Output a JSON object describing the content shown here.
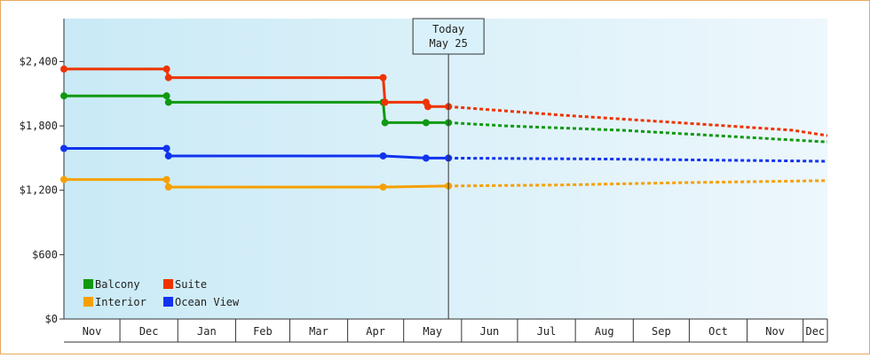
{
  "chart_data": {
    "type": "line",
    "title": "",
    "xlabel": "",
    "ylabel": "",
    "y_ticks": [
      "$0",
      "$600",
      "$1,200",
      "$1,800",
      "$2,400"
    ],
    "ylim": [
      0,
      2400
    ],
    "ylim_display_top": 2800,
    "x_start": "2023-11-01",
    "x_end": "2024-12-14",
    "month_labels": [
      {
        "label": "Nov",
        "start": "2023-11-01",
        "end": "2023-12-01"
      },
      {
        "label": "Dec",
        "start": "2023-12-01",
        "end": "2024-01-01"
      },
      {
        "label": "Jan",
        "start": "2024-01-01",
        "end": "2024-02-01"
      },
      {
        "label": "Feb",
        "start": "2024-02-01",
        "end": "2024-03-01"
      },
      {
        "label": "Mar",
        "start": "2024-03-01",
        "end": "2024-04-01"
      },
      {
        "label": "Apr",
        "start": "2024-04-01",
        "end": "2024-05-01"
      },
      {
        "label": "May",
        "start": "2024-05-01",
        "end": "2024-06-01"
      },
      {
        "label": "Jun",
        "start": "2024-06-01",
        "end": "2024-07-01"
      },
      {
        "label": "Jul",
        "start": "2024-07-01",
        "end": "2024-08-01"
      },
      {
        "label": "Aug",
        "start": "2024-08-01",
        "end": "2024-09-01"
      },
      {
        "label": "Sep",
        "start": "2024-09-01",
        "end": "2024-10-01"
      },
      {
        "label": "Oct",
        "start": "2024-10-01",
        "end": "2024-11-01"
      },
      {
        "label": "Nov",
        "start": "2024-11-01",
        "end": "2024-12-01"
      },
      {
        "label": "Dec",
        "start": "2024-12-01",
        "end": "2024-12-14"
      }
    ],
    "today": {
      "line1": "Today",
      "line2": "May 25",
      "date": "2024-05-25"
    },
    "legend_placement": "bottom-left",
    "grid": false,
    "series": [
      {
        "name": "Balcony",
        "color": "#119911",
        "history": [
          {
            "x": "2023-11-01",
            "y": 2080
          },
          {
            "x": "2023-12-26",
            "y": 2080
          },
          {
            "x": "2023-12-27",
            "y": 2020
          },
          {
            "x": "2024-04-20",
            "y": 2020
          },
          {
            "x": "2024-04-21",
            "y": 1830
          },
          {
            "x": "2024-05-13",
            "y": 1830
          },
          {
            "x": "2024-05-25",
            "y": 1830
          }
        ],
        "markers": [
          "2023-11-01",
          "2023-12-26",
          "2023-12-27",
          "2024-04-20",
          "2024-04-21",
          "2024-05-13",
          "2024-05-25"
        ],
        "forecast": [
          {
            "x": "2024-05-25",
            "y": 1830
          },
          {
            "x": "2024-06-25",
            "y": 1800
          },
          {
            "x": "2024-08-25",
            "y": 1760
          },
          {
            "x": "2024-10-25",
            "y": 1700
          },
          {
            "x": "2024-12-14",
            "y": 1650
          }
        ]
      },
      {
        "name": "Suite",
        "color": "#ee3300",
        "history": [
          {
            "x": "2023-11-01",
            "y": 2330
          },
          {
            "x": "2023-12-26",
            "y": 2330
          },
          {
            "x": "2023-12-27",
            "y": 2250
          },
          {
            "x": "2024-04-20",
            "y": 2250
          },
          {
            "x": "2024-04-21",
            "y": 2020
          },
          {
            "x": "2024-05-13",
            "y": 2020
          },
          {
            "x": "2024-05-14",
            "y": 1980
          },
          {
            "x": "2024-05-25",
            "y": 1980
          }
        ],
        "markers": [
          "2023-11-01",
          "2023-12-26",
          "2023-12-27",
          "2024-04-20",
          "2024-04-21",
          "2024-05-13",
          "2024-05-14",
          "2024-05-25"
        ],
        "forecast": [
          {
            "x": "2024-05-25",
            "y": 1980
          },
          {
            "x": "2024-07-25",
            "y": 1900
          },
          {
            "x": "2024-09-25",
            "y": 1830
          },
          {
            "x": "2024-11-25",
            "y": 1760
          },
          {
            "x": "2024-12-14",
            "y": 1710
          }
        ]
      },
      {
        "name": "Interior",
        "color": "#f5a000",
        "history": [
          {
            "x": "2023-11-01",
            "y": 1300
          },
          {
            "x": "2023-12-26",
            "y": 1300
          },
          {
            "x": "2023-12-27",
            "y": 1230
          },
          {
            "x": "2024-04-20",
            "y": 1230
          },
          {
            "x": "2024-05-25",
            "y": 1240
          }
        ],
        "markers": [
          "2023-11-01",
          "2023-12-26",
          "2023-12-27",
          "2024-04-20",
          "2024-05-25"
        ],
        "forecast": [
          {
            "x": "2024-05-25",
            "y": 1240
          },
          {
            "x": "2024-07-25",
            "y": 1250
          },
          {
            "x": "2024-09-25",
            "y": 1270
          },
          {
            "x": "2024-12-14",
            "y": 1290
          }
        ]
      },
      {
        "name": "Ocean View",
        "color": "#1133ee",
        "history": [
          {
            "x": "2023-11-01",
            "y": 1590
          },
          {
            "x": "2023-12-26",
            "y": 1590
          },
          {
            "x": "2023-12-27",
            "y": 1520
          },
          {
            "x": "2024-04-20",
            "y": 1520
          },
          {
            "x": "2024-05-13",
            "y": 1500
          },
          {
            "x": "2024-05-25",
            "y": 1500
          }
        ],
        "markers": [
          "2023-11-01",
          "2023-12-26",
          "2023-12-27",
          "2024-04-20",
          "2024-05-13",
          "2024-05-25"
        ],
        "forecast": [
          {
            "x": "2024-05-25",
            "y": 1500
          },
          {
            "x": "2024-08-25",
            "y": 1490
          },
          {
            "x": "2024-12-14",
            "y": 1470
          }
        ]
      }
    ]
  }
}
